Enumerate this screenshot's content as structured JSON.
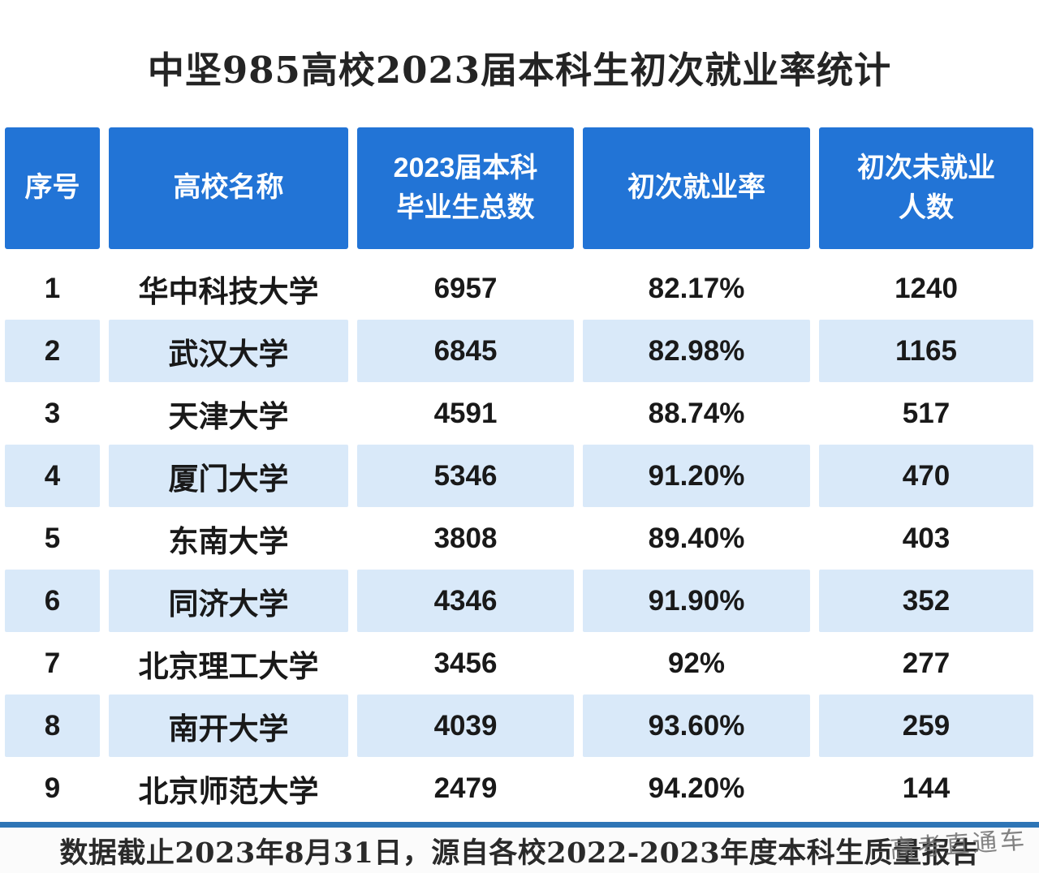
{
  "page": {
    "title": "中坚985高校2023届本科生初次就业率统计",
    "footer_note": "数据截止2023年8月31日，源自各校2022-2023年度本科生质量报告",
    "watermark": "高考直通车"
  },
  "colors": {
    "header_blue": "#2274d6",
    "row_alt_blue": "#d9e9f9",
    "divider_blue": "#2e75b6",
    "header_text": "#ffffff",
    "body_text": "#191919"
  },
  "table": {
    "headers": {
      "index": "序号",
      "name": "高校名称",
      "total": "2023届本科\n毕业生总数",
      "rate": "初次就业率",
      "unemployed": "初次未就业\n人数"
    },
    "rows": [
      {
        "num": "1",
        "name": "华中科技大学",
        "total": "6957",
        "rate": "82.17%",
        "unemployed": "1240"
      },
      {
        "num": "2",
        "name": "武汉大学",
        "total": "6845",
        "rate": "82.98%",
        "unemployed": "1165"
      },
      {
        "num": "3",
        "name": "天津大学",
        "total": "4591",
        "rate": "88.74%",
        "unemployed": "517"
      },
      {
        "num": "4",
        "name": "厦门大学",
        "total": "5346",
        "rate": "91.20%",
        "unemployed": "470"
      },
      {
        "num": "5",
        "name": "东南大学",
        "total": "3808",
        "rate": "89.40%",
        "unemployed": "403"
      },
      {
        "num": "6",
        "name": "同济大学",
        "total": "4346",
        "rate": "91.90%",
        "unemployed": "352"
      },
      {
        "num": "7",
        "name": "北京理工大学",
        "total": "3456",
        "rate": "92%",
        "unemployed": "277"
      },
      {
        "num": "8",
        "name": "南开大学",
        "total": "4039",
        "rate": "93.60%",
        "unemployed": "259"
      },
      {
        "num": "9",
        "name": "北京师范大学",
        "total": "2479",
        "rate": "94.20%",
        "unemployed": "144"
      }
    ]
  },
  "chart_data": {
    "type": "table",
    "title": "中坚985高校2023届本科生初次就业率统计",
    "columns": [
      "序号",
      "高校名称",
      "2023届本科毕业生总数",
      "初次就业率",
      "初次未就业人数"
    ],
    "rows": [
      [
        1,
        "华中科技大学",
        6957,
        "82.17%",
        1240
      ],
      [
        2,
        "武汉大学",
        6845,
        "82.98%",
        1165
      ],
      [
        3,
        "天津大学",
        4591,
        "88.74%",
        517
      ],
      [
        4,
        "厦门大学",
        5346,
        "91.20%",
        470
      ],
      [
        5,
        "东南大学",
        3808,
        "89.40%",
        403
      ],
      [
        6,
        "同济大学",
        4346,
        "91.90%",
        352
      ],
      [
        7,
        "北京理工大学",
        3456,
        "92%",
        277
      ],
      [
        8,
        "南开大学",
        4039,
        "93.60%",
        259
      ],
      [
        9,
        "北京师范大学",
        2479,
        "94.20%",
        144
      ]
    ],
    "note": "数据截止2023年8月31日，源自各校2022-2023年度本科生质量报告"
  }
}
